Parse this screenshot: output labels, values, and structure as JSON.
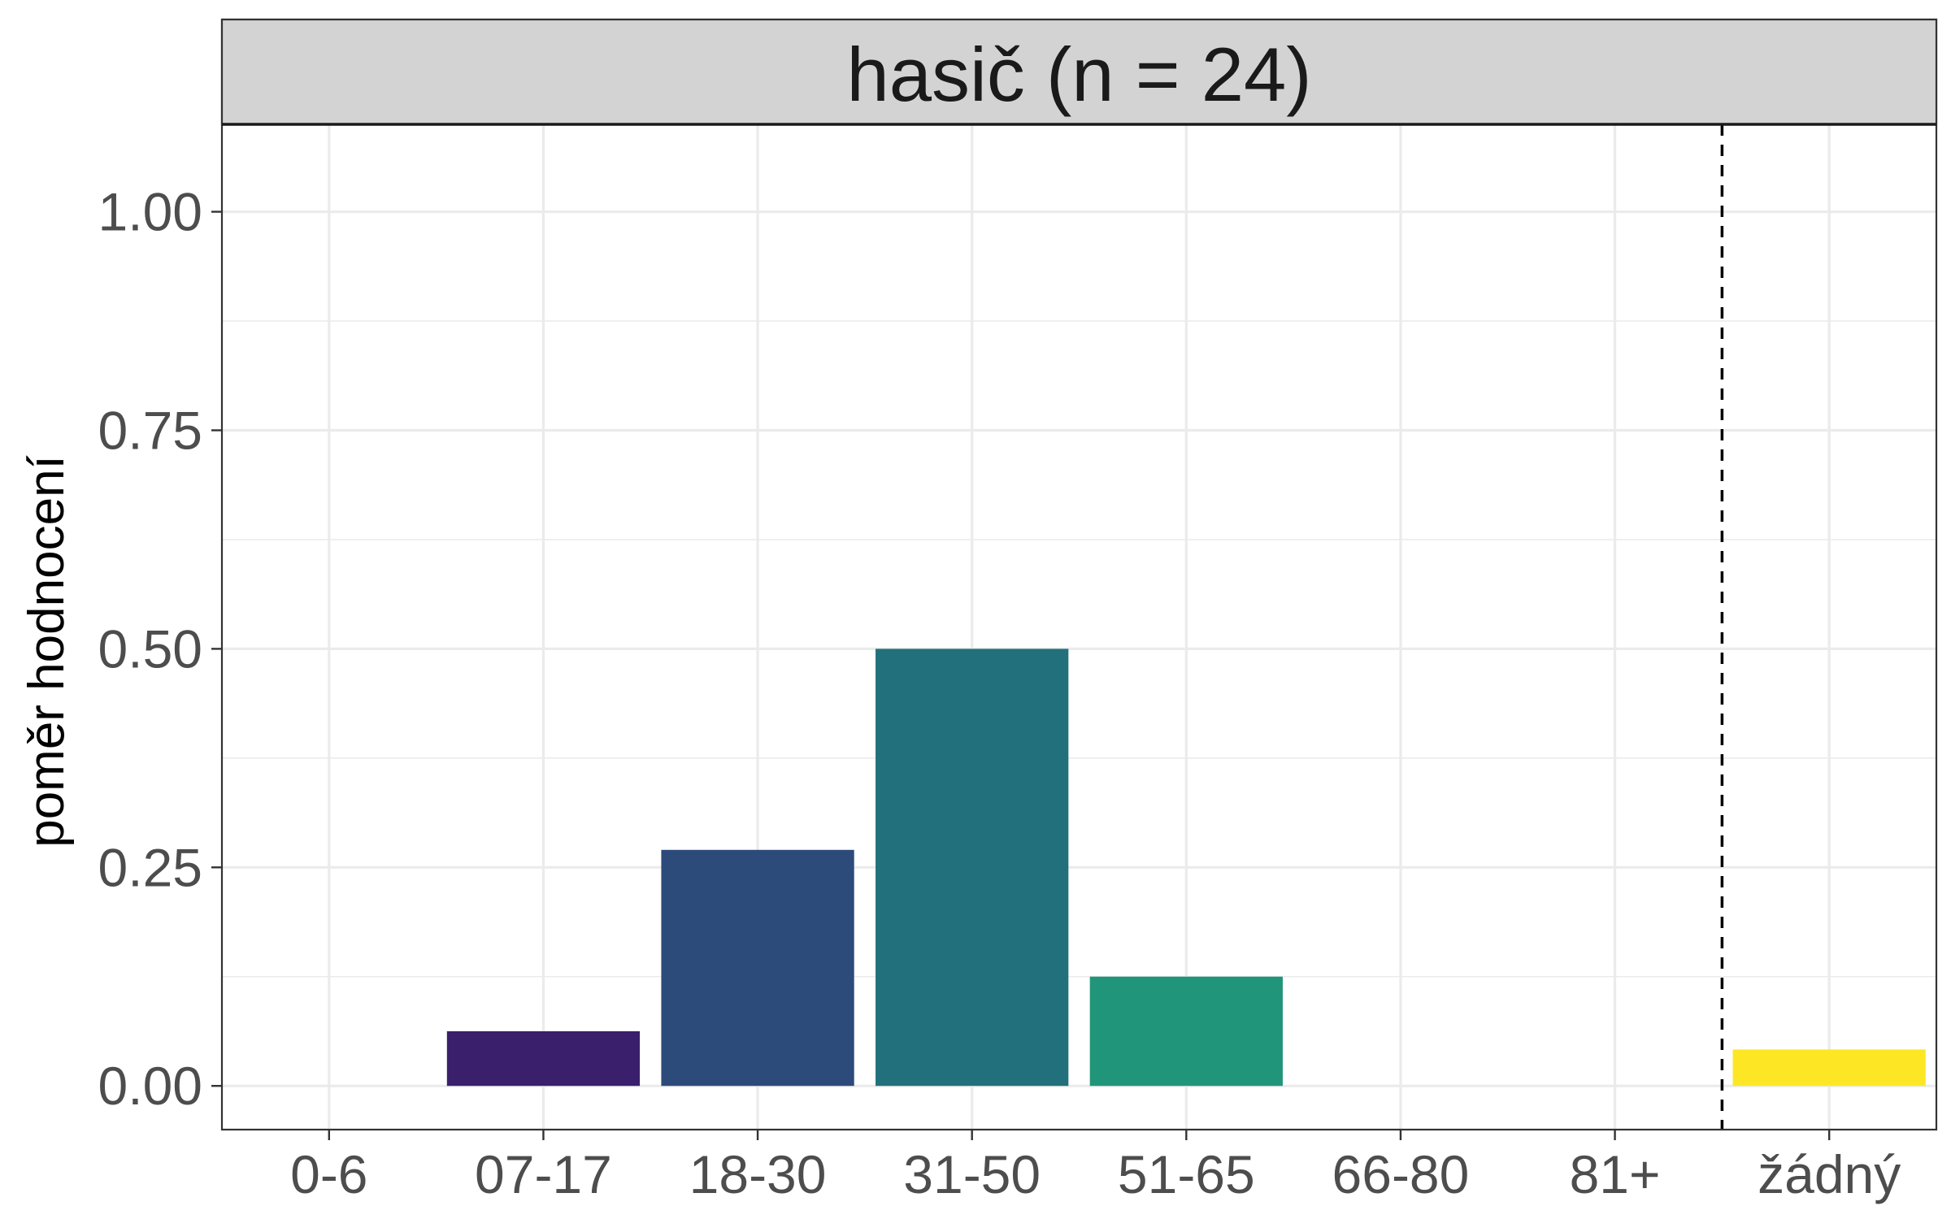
{
  "chart_data": {
    "type": "bar",
    "facet_label": "hasič (n = 24)",
    "title": "",
    "xlabel": "",
    "ylabel": "poměr hodnocení",
    "categories": [
      "0-6",
      "07-17",
      "18-30",
      "31-50",
      "51-65",
      "66-80",
      "81+",
      "žádný"
    ],
    "values": [
      0.0,
      0.0625,
      0.27,
      0.5,
      0.125,
      0.0,
      0.0,
      0.0417
    ],
    "bar_colors": [
      "#440154",
      "#3A1F6C",
      "#2C4A7A",
      "#21707B",
      "#21957A",
      "#5EC962",
      "#ADDC30",
      "#FDE725"
    ],
    "ylim": [
      -0.05,
      1.1
    ],
    "y_ticks": [
      0.0,
      0.25,
      0.5,
      0.75,
      1.0
    ],
    "y_tick_labels": [
      "0.00",
      "0.25",
      "0.50",
      "0.75",
      "1.00"
    ],
    "reference_line": {
      "style": "dashed",
      "between": [
        "81+",
        "žádný"
      ],
      "color": "#000000"
    },
    "grid": true,
    "legend": "none",
    "colors": {
      "strip_background": "#D3D3D3",
      "gridline": "#EBEBEB",
      "panel_border": "#333333"
    }
  }
}
